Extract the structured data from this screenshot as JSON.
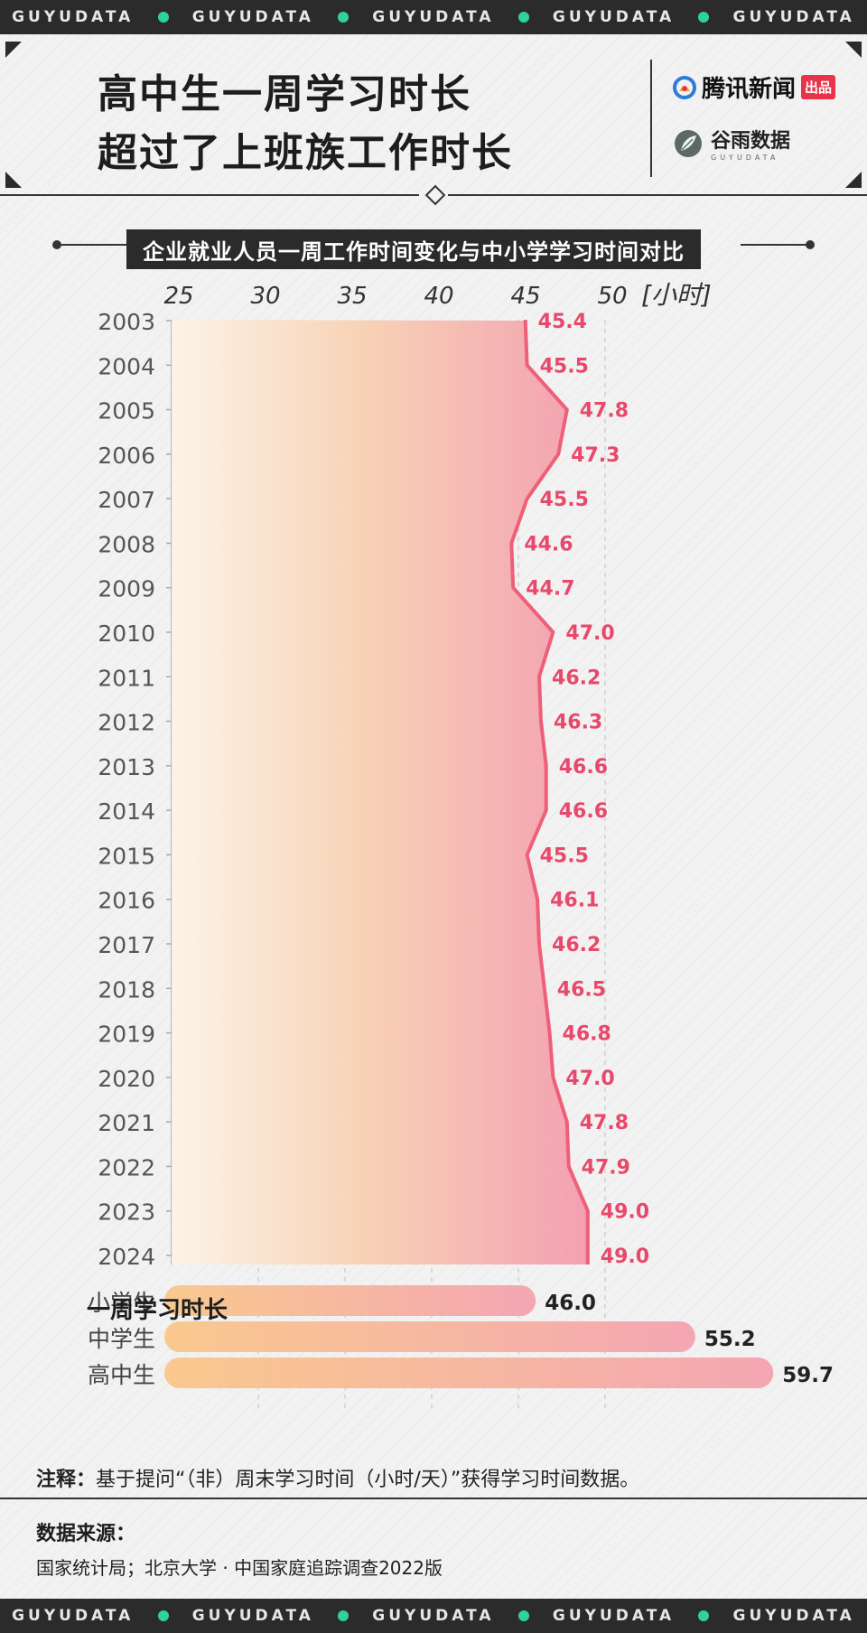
{
  "strip_label": "GUYUDATA",
  "header": {
    "title_line1": "高中生一周学习时长",
    "title_line2": "超过了上班族工作时长",
    "brand1_name": "腾讯新闻",
    "brand1_tag": "出品",
    "brand2_name": "谷雨数据",
    "brand2_sub": "GUYUDATA"
  },
  "subtitle": "企业就业人员一周工作时间变化与中小学学习时间对比",
  "colors": {
    "line": "#ee5f78",
    "label": "#e8486a",
    "bar_start": "#f9c98e",
    "bar_end": "#f4a6b3",
    "accent_dot": "#2fd39a"
  },
  "chart_data": [
    {
      "type": "area",
      "orientation": "vertical-time",
      "x_unit": "[小时]",
      "xlim": [
        25,
        50
      ],
      "x_ticks": [
        25,
        30,
        35,
        40,
        45,
        50
      ],
      "years": [
        "2003",
        "2004",
        "2005",
        "2006",
        "2007",
        "2008",
        "2009",
        "2010",
        "2011",
        "2012",
        "2013",
        "2014",
        "2015",
        "2016",
        "2017",
        "2018",
        "2019",
        "2020",
        "2021",
        "2022",
        "2023",
        "2024"
      ],
      "values": [
        45.4,
        45.5,
        47.8,
        47.3,
        45.5,
        44.6,
        44.7,
        47.0,
        46.2,
        46.3,
        46.6,
        46.6,
        45.5,
        46.1,
        46.2,
        46.5,
        46.8,
        47.0,
        47.8,
        47.9,
        49.0,
        49.0
      ],
      "value_labels": [
        "45.4",
        "45.5",
        "47.8",
        "47.3",
        "45.5",
        "44.6",
        "44.7",
        "47.0",
        "46.2",
        "46.3",
        "46.6",
        "46.6",
        "45.5",
        "46.1",
        "46.2",
        "46.5",
        "46.8",
        "47.0",
        "47.8",
        "47.9",
        "49.0",
        "49.0"
      ]
    },
    {
      "type": "bar",
      "title": "一周学习时长",
      "categories": [
        "小学生",
        "中学生",
        "高中生"
      ],
      "values": [
        46.0,
        55.2,
        59.7
      ],
      "value_labels": [
        "46.0",
        "55.2",
        "59.7"
      ]
    }
  ],
  "note": {
    "label": "注释：",
    "text": "基于提问“（非）周末学习时间（小时/天）”获得学习时间数据。"
  },
  "source": {
    "label": "数据来源：",
    "text": "国家统计局；北京大学 · 中国家庭追踪调查2022版"
  }
}
